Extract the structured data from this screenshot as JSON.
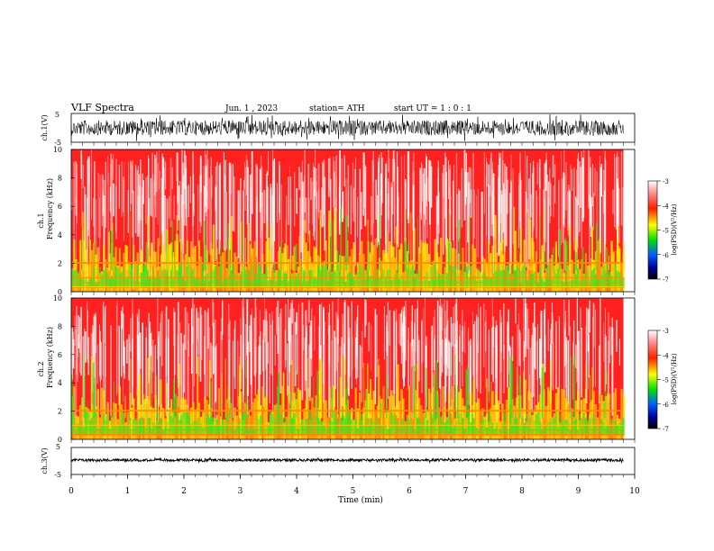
{
  "header": {
    "title": "VLF  Spectra",
    "date": "Jun. 1  , 2023",
    "station": "station= ATH",
    "start_ut": "start  UT  =   1 : 0  : 1"
  },
  "colors": {
    "background_red": "#ff2020",
    "mid_yellow": "#ffee00",
    "low_green": "#22ee22",
    "trace": "#000000"
  },
  "chart_data": [
    {
      "type": "line",
      "ylabel": "ch.1(V)",
      "ylim": [
        -5,
        5
      ],
      "y_ticks": [
        "5",
        "-5"
      ],
      "xlim": [
        0,
        9.8
      ]
    },
    {
      "type": "heatmap",
      "ylabel_line1": "ch.1",
      "ylabel_line2": "Frequency  (kHz)",
      "ylim": [
        0,
        10
      ],
      "y_ticks": [
        "0",
        "2",
        "4",
        "6",
        "8",
        "10"
      ],
      "xlim": [
        0,
        9.8
      ],
      "colorbar": {
        "label": "log(PSD)(V²/Hz)",
        "range": [
          -7,
          -3
        ],
        "ticks": [
          "-3",
          "-4",
          "-5",
          "-6",
          "-7"
        ]
      }
    },
    {
      "type": "heatmap",
      "ylabel_line1": "ch.2",
      "ylabel_line2": "Frequency  (kHz)",
      "ylim": [
        0,
        10
      ],
      "y_ticks": [
        "0",
        "2",
        "4",
        "6",
        "8",
        "10"
      ],
      "xlim": [
        0,
        9.8
      ],
      "colorbar": {
        "label": "log(PSD)(V²/Hz)",
        "range": [
          -7,
          -3
        ],
        "ticks": [
          "-3",
          "-4",
          "-5",
          "-6",
          "-7"
        ]
      }
    },
    {
      "type": "line",
      "ylabel": "ch.3(V)",
      "ylim": [
        -5,
        5
      ],
      "y_ticks": [
        "5",
        "-5"
      ],
      "xlim": [
        0,
        9.8
      ]
    }
  ],
  "x_axis": {
    "label": "Time  (min)",
    "range": [
      0,
      10
    ],
    "ticks": [
      "0",
      "1",
      "2",
      "3",
      "4",
      "5",
      "6",
      "7",
      "8",
      "9",
      "10"
    ]
  }
}
